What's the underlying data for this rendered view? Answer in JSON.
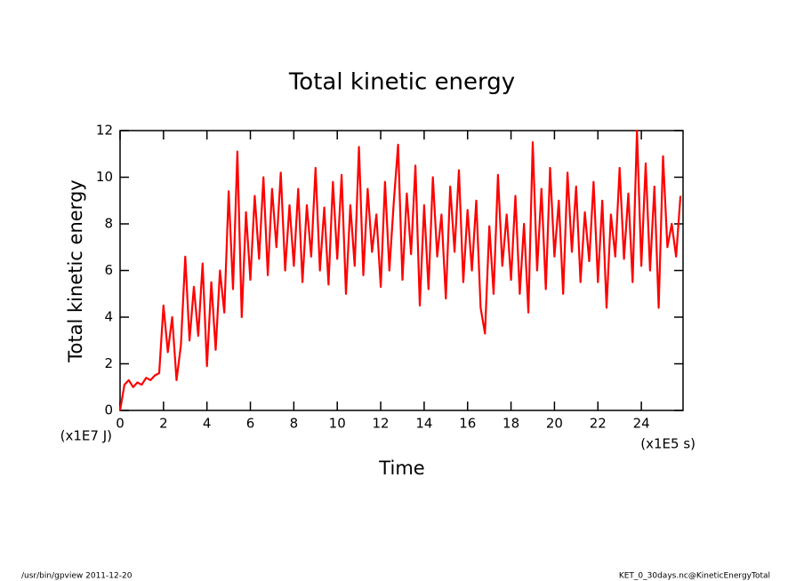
{
  "chart_data": {
    "type": "line",
    "title": "Total kinetic energy",
    "xlabel": "Time",
    "ylabel": "Total kinetic energy",
    "xunit": "(x1E5 s)",
    "yunit": "(x1E7 J)",
    "x": [
      0,
      0.2,
      0.4,
      0.6,
      0.8,
      1.0,
      1.2,
      1.4,
      1.6,
      1.8,
      2.0,
      2.2,
      2.4,
      2.6,
      2.8,
      3.0,
      3.2,
      3.4,
      3.6,
      3.8,
      4.0,
      4.2,
      4.4,
      4.6,
      4.8,
      5.0,
      5.2,
      5.4,
      5.6,
      5.8,
      6.0,
      6.2,
      6.4,
      6.6,
      6.8,
      7.0,
      7.2,
      7.4,
      7.6,
      7.8,
      8.0,
      8.2,
      8.4,
      8.6,
      8.8,
      9.0,
      9.2,
      9.4,
      9.6,
      9.8,
      10.0,
      10.2,
      10.4,
      10.6,
      10.8,
      11.0,
      11.2,
      11.4,
      11.6,
      11.8,
      12.0,
      12.2,
      12.4,
      12.6,
      12.8,
      13.0,
      13.2,
      13.4,
      13.6,
      13.8,
      14.0,
      14.2,
      14.4,
      14.6,
      14.8,
      15.0,
      15.2,
      15.4,
      15.6,
      15.8,
      16.0,
      16.2,
      16.4,
      16.6,
      16.8,
      17.0,
      17.2,
      17.4,
      17.6,
      17.8,
      18.0,
      18.2,
      18.4,
      18.6,
      18.8,
      19.0,
      19.2,
      19.4,
      19.6,
      19.8,
      20.0,
      20.2,
      20.4,
      20.6,
      20.8,
      21.0,
      21.2,
      21.4,
      21.6,
      21.8,
      22.0,
      22.2,
      22.4,
      22.6,
      22.8,
      23.0,
      23.2,
      23.4,
      23.6,
      23.8,
      24.0,
      24.2,
      24.4,
      24.6,
      24.8,
      25.0,
      25.2,
      25.4,
      25.6,
      25.8
    ],
    "values": [
      0,
      1.1,
      1.3,
      1.0,
      1.2,
      1.1,
      1.4,
      1.3,
      1.5,
      1.6,
      4.5,
      2.5,
      4.0,
      1.3,
      2.8,
      6.6,
      3.0,
      5.3,
      3.2,
      6.3,
      1.9,
      5.5,
      2.6,
      6.0,
      4.2,
      9.4,
      5.2,
      11.1,
      4.0,
      8.5,
      5.6,
      9.2,
      6.5,
      10.0,
      5.8,
      9.5,
      7.0,
      10.2,
      6.0,
      8.8,
      6.2,
      9.5,
      5.5,
      8.8,
      6.6,
      10.4,
      6.0,
      8.7,
      5.4,
      9.8,
      6.5,
      10.1,
      5.0,
      8.8,
      6.2,
      11.3,
      5.8,
      9.5,
      6.8,
      8.4,
      5.3,
      9.8,
      6.0,
      8.9,
      11.4,
      5.6,
      9.3,
      6.7,
      10.5,
      4.5,
      8.8,
      5.2,
      10.0,
      6.6,
      8.4,
      4.8,
      9.6,
      6.8,
      10.3,
      5.5,
      8.6,
      6.0,
      9.0,
      4.4,
      3.3,
      7.9,
      5.0,
      10.1,
      6.2,
      8.4,
      5.6,
      9.2,
      5.0,
      8.0,
      4.2,
      11.5,
      6.0,
      9.5,
      5.2,
      10.4,
      6.6,
      9.0,
      5.0,
      10.2,
      6.8,
      9.6,
      5.5,
      8.5,
      6.4,
      9.8,
      5.5,
      9.0,
      4.4,
      8.4,
      6.6,
      10.4,
      6.5,
      9.3,
      5.5,
      12.0,
      6.2,
      10.6,
      6.0,
      9.6,
      4.4,
      10.9,
      7.0,
      8.0,
      6.6,
      9.2
    ],
    "color": "#ff0000",
    "xlim": [
      0,
      25.92
    ],
    "xticks": [
      0,
      2,
      4,
      6,
      8,
      10,
      12,
      14,
      16,
      18,
      20,
      22,
      24
    ],
    "ylim": [
      0,
      12
    ],
    "yticks": [
      0,
      2,
      4,
      6,
      8,
      10,
      12
    ]
  },
  "footer": {
    "left": "/usr/bin/gpview   2011-12-20",
    "right": "KET_0_30days.nc@KineticEnergyTotal"
  }
}
